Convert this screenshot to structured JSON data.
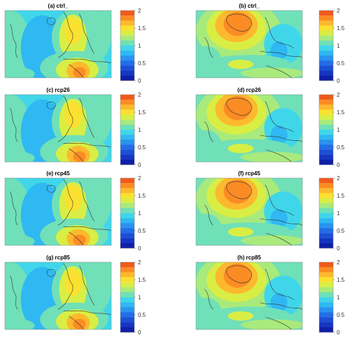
{
  "figure": {
    "colorbar": {
      "ticks": [
        "2",
        "1.5",
        "1",
        "0.5",
        "0"
      ],
      "levels": [
        "#f05a1c",
        "#fb8c24",
        "#fdb92d",
        "#fbe12f",
        "#d9ee44",
        "#a9ea7c",
        "#6fe0b8",
        "#40d6ea",
        "#2fb8f2",
        "#2a93ef",
        "#236ee6",
        "#1d4fd6",
        "#1636c2",
        "#0f1fa6"
      ]
    },
    "panels": [
      {
        "label": "(a) ctrl_",
        "pattern": "left"
      },
      {
        "label": "(b) ctrl_",
        "pattern": "right"
      },
      {
        "label": "(c) rcp26",
        "pattern": "left"
      },
      {
        "label": "(d) rcp26",
        "pattern": "right"
      },
      {
        "label": "(e) rcp45",
        "pattern": "left"
      },
      {
        "label": "(f) rcp45",
        "pattern": "right"
      },
      {
        "label": "(g) rcp85",
        "pattern": "left"
      },
      {
        "label": "(h) rcp85",
        "pattern": "right"
      }
    ]
  },
  "chart_data": {
    "type": "heatmap",
    "panel_titles": [
      "(a) ctrl_",
      "(b) ctrl_",
      "(c) rcp26",
      "(d) rcp26",
      "(e) rcp45",
      "(f) rcp45",
      "(g) rcp85",
      "(h) rcp85"
    ],
    "colorbar": {
      "range": [
        0,
        2
      ],
      "ticks": [
        0,
        0.5,
        1,
        1.5,
        2
      ],
      "colormap": "jet-like, 14 discrete levels"
    },
    "grid": false,
    "legend": "colorbar to the right of each panel"
  }
}
